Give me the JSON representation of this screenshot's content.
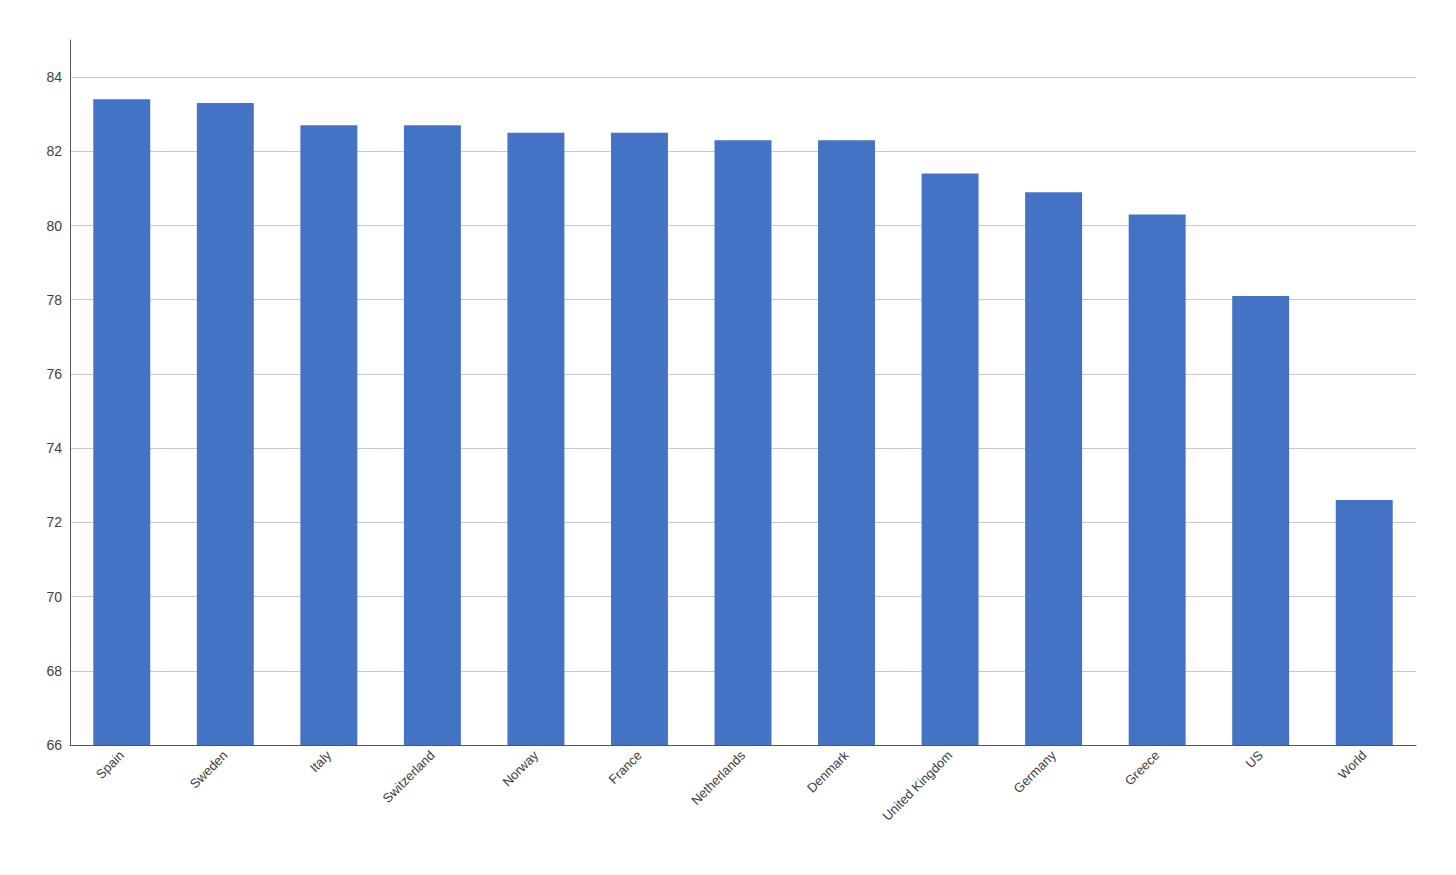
{
  "chart_data": {
    "type": "bar",
    "categories": [
      "Spain",
      "Sweden",
      "Italy",
      "Switzerland",
      "Norway",
      "France",
      "Netherlands",
      "Denmark",
      "United Kingdom",
      "Germany",
      "Greece",
      "US",
      "World"
    ],
    "values": [
      83.4,
      83.3,
      82.7,
      82.7,
      82.5,
      82.5,
      82.3,
      82.3,
      81.4,
      80.9,
      80.3,
      78.1,
      72.6
    ],
    "color": "#4472C4",
    "ylim": [
      66,
      85
    ],
    "yticks": [
      66,
      68,
      70,
      72,
      74,
      76,
      78,
      80,
      82,
      84
    ],
    "grid": true
  }
}
